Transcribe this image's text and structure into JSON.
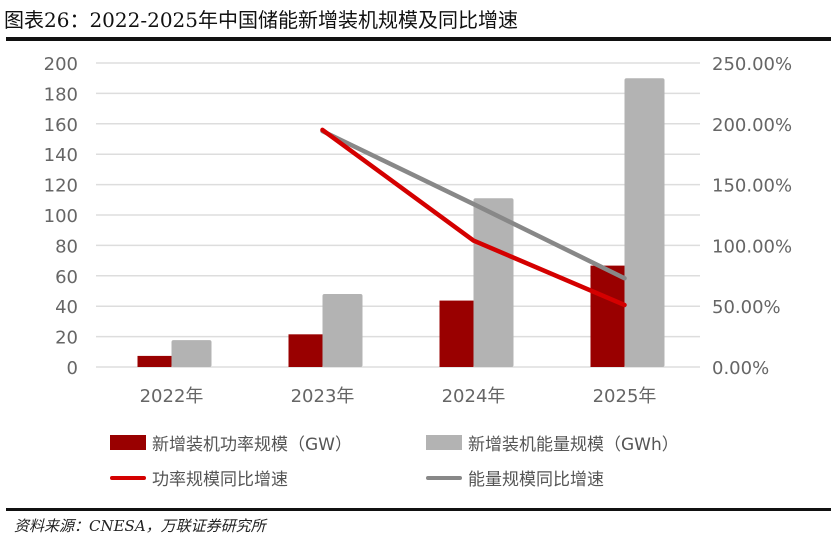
{
  "title": "图表26：2022-2025年中国储能新增装机规模及同比增速",
  "source": "资料来源：CNESA，万联证券研究所",
  "colors": {
    "power_bar": "#990000",
    "energy_bar": "#b3b3b3",
    "power_line": "#d40000",
    "energy_line": "#888888",
    "grid": "#dddddd",
    "axis_text": "#666666"
  },
  "legend": {
    "power_bar": "新增装机功率规模（GW）",
    "energy_bar": "新增装机能量规模（GWh）",
    "power_line": "功率规模同比增速",
    "energy_line": "能量规模同比增速"
  },
  "chart_data": {
    "type": "bar",
    "title": "2022-2025年中国储能新增装机规模及同比增速",
    "categories": [
      "2022年",
      "2023年",
      "2024年",
      "2025年"
    ],
    "series": [
      {
        "name": "新增装机功率规模（GW）",
        "type": "bar",
        "axis": "left",
        "values": [
          7.3,
          21.5,
          43.7,
          66.7
        ]
      },
      {
        "name": "新增装机能量规模（GWh）",
        "type": "bar",
        "axis": "left",
        "values": [
          17.7,
          48.0,
          111.0,
          190.0
        ]
      },
      {
        "name": "功率规模同比增速",
        "type": "line",
        "axis": "right",
        "values": [
          null,
          195.0,
          104.0,
          51.0
        ]
      },
      {
        "name": "能量规模同比增速",
        "type": "line",
        "axis": "right",
        "values": [
          null,
          194.0,
          134.0,
          73.0
        ]
      }
    ],
    "left_axis": {
      "ylim": [
        0,
        200
      ],
      "ticks": [
        "0",
        "20",
        "40",
        "60",
        "80",
        "100",
        "120",
        "140",
        "160",
        "180",
        "200"
      ]
    },
    "right_axis": {
      "ylim": [
        0,
        250
      ],
      "ticks": [
        "0.00%",
        "50.00%",
        "100.00%",
        "150.00%",
        "200.00%",
        "250.00%"
      ]
    },
    "xlabel": "",
    "ylabel": "",
    "grid": true,
    "legend_position": "bottom"
  }
}
